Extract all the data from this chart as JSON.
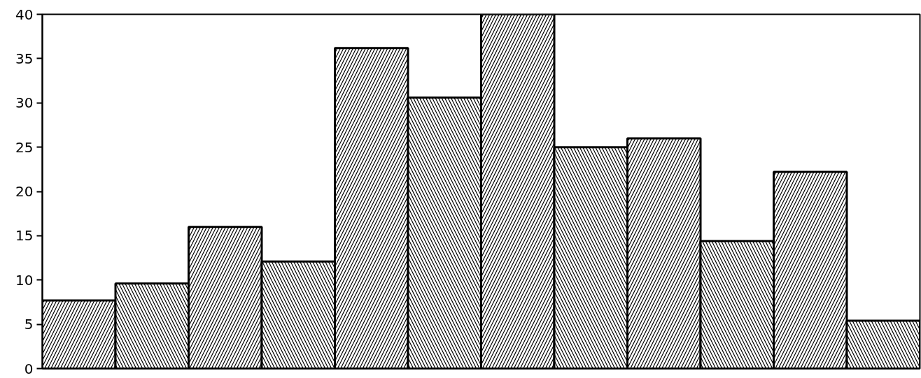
{
  "chart_data": {
    "type": "bar",
    "categories": [
      null,
      null,
      null,
      null,
      null,
      null,
      null,
      null,
      null,
      null,
      null,
      null
    ],
    "values": [
      7.7,
      9.6,
      16,
      12.1,
      36.2,
      30.6,
      40,
      25,
      26,
      14.4,
      22.2,
      5.4
    ],
    "color": "#000000",
    "ylim": [
      0,
      40
    ],
    "yticks": [
      0,
      5,
      10,
      15,
      20,
      25,
      30,
      35,
      40
    ],
    "grid": false,
    "tick_labels": "y"
  }
}
